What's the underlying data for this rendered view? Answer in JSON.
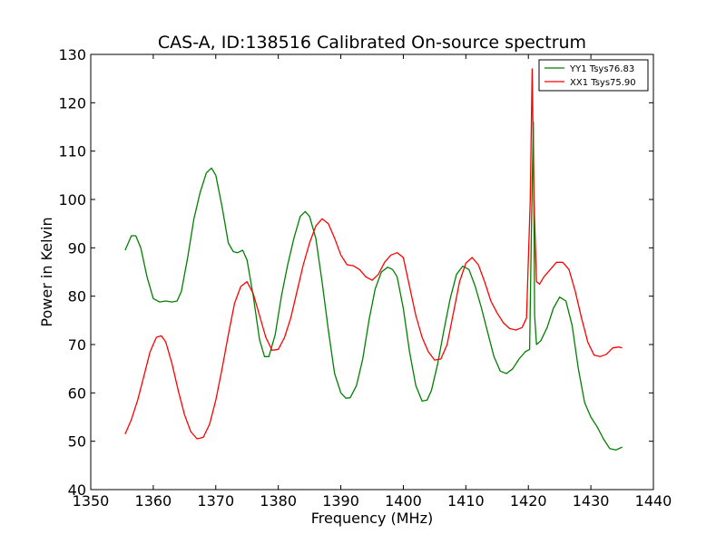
{
  "chart_data": {
    "type": "line",
    "title": "CAS-A, ID:138516 Calibrated On-source spectrum",
    "xlabel": "Frequency (MHz)",
    "ylabel": "Power in Kelvin",
    "xlim": [
      1350,
      1440
    ],
    "ylim": [
      40,
      130
    ],
    "xticks": [
      "1350",
      "1360",
      "1370",
      "1380",
      "1390",
      "1400",
      "1410",
      "1420",
      "1430",
      "1440"
    ],
    "yticks": [
      "40",
      "50",
      "60",
      "70",
      "80",
      "90",
      "100",
      "110",
      "120",
      "130"
    ],
    "grid": false,
    "legend_position": "top-right",
    "series": [
      {
        "name": "YY1 Tsys76.83",
        "color": "#008000",
        "points": [
          [
            1355.5,
            89.5
          ],
          [
            1356.5,
            92.5
          ],
          [
            1357.2,
            92.5
          ],
          [
            1358.0,
            90.0
          ],
          [
            1359.0,
            84.0
          ],
          [
            1360.0,
            79.5
          ],
          [
            1361.0,
            78.8
          ],
          [
            1362.0,
            79.0
          ],
          [
            1363.0,
            78.8
          ],
          [
            1363.8,
            79.0
          ],
          [
            1364.5,
            81.0
          ],
          [
            1365.5,
            88.0
          ],
          [
            1366.5,
            96.0
          ],
          [
            1367.5,
            101.5
          ],
          [
            1368.5,
            105.5
          ],
          [
            1369.3,
            106.5
          ],
          [
            1370.0,
            105.0
          ],
          [
            1371.0,
            98.5
          ],
          [
            1372.0,
            91.0
          ],
          [
            1372.8,
            89.2
          ],
          [
            1373.5,
            89.0
          ],
          [
            1374.3,
            89.5
          ],
          [
            1375.0,
            87.5
          ],
          [
            1376.0,
            80.0
          ],
          [
            1377.0,
            71.0
          ],
          [
            1377.8,
            67.5
          ],
          [
            1378.5,
            67.5
          ],
          [
            1379.5,
            72.0
          ],
          [
            1380.5,
            80.0
          ],
          [
            1381.5,
            86.5
          ],
          [
            1382.5,
            92.0
          ],
          [
            1383.5,
            96.5
          ],
          [
            1384.3,
            97.5
          ],
          [
            1385.0,
            96.5
          ],
          [
            1386.0,
            92.0
          ],
          [
            1387.0,
            83.0
          ],
          [
            1388.0,
            73.0
          ],
          [
            1389.0,
            64.0
          ],
          [
            1390.0,
            60.0
          ],
          [
            1390.8,
            58.9
          ],
          [
            1391.5,
            59.0
          ],
          [
            1392.5,
            61.5
          ],
          [
            1393.5,
            67.0
          ],
          [
            1394.5,
            75.0
          ],
          [
            1395.5,
            81.5
          ],
          [
            1396.5,
            85.0
          ],
          [
            1397.5,
            86.0
          ],
          [
            1398.3,
            85.5
          ],
          [
            1399.0,
            84.0
          ],
          [
            1400.0,
            77.5
          ],
          [
            1401.0,
            68.5
          ],
          [
            1402.0,
            61.5
          ],
          [
            1403.0,
            58.3
          ],
          [
            1403.8,
            58.5
          ],
          [
            1404.5,
            60.5
          ],
          [
            1405.5,
            66.0
          ],
          [
            1406.5,
            73.0
          ],
          [
            1407.5,
            79.5
          ],
          [
            1408.5,
            84.5
          ],
          [
            1409.5,
            86.2
          ],
          [
            1410.5,
            85.5
          ],
          [
            1411.5,
            82.0
          ],
          [
            1412.5,
            77.5
          ],
          [
            1413.5,
            72.5
          ],
          [
            1414.5,
            67.5
          ],
          [
            1415.5,
            64.5
          ],
          [
            1416.5,
            64.0
          ],
          [
            1417.5,
            65.0
          ],
          [
            1418.5,
            67.0
          ],
          [
            1419.5,
            68.5
          ],
          [
            1420.2,
            69.0
          ],
          [
            1420.5,
            95.0
          ],
          [
            1420.8,
            116.0
          ],
          [
            1421.0,
            76.0
          ],
          [
            1421.3,
            70.0
          ],
          [
            1422.0,
            70.8
          ],
          [
            1423.0,
            73.5
          ],
          [
            1424.0,
            77.5
          ],
          [
            1425.0,
            79.8
          ],
          [
            1426.0,
            79.0
          ],
          [
            1427.0,
            74.0
          ],
          [
            1428.0,
            65.0
          ],
          [
            1429.0,
            58.0
          ],
          [
            1430.0,
            55.0
          ],
          [
            1431.0,
            53.0
          ],
          [
            1432.0,
            50.5
          ],
          [
            1433.0,
            48.5
          ],
          [
            1434.0,
            48.2
          ],
          [
            1435.0,
            48.8
          ]
        ]
      },
      {
        "name": "XX1 Tsys75.90",
        "color": "#ff0000",
        "points": [
          [
            1355.5,
            51.5
          ],
          [
            1356.5,
            54.5
          ],
          [
            1357.5,
            58.5
          ],
          [
            1358.5,
            63.5
          ],
          [
            1359.5,
            68.5
          ],
          [
            1360.5,
            71.5
          ],
          [
            1361.3,
            71.8
          ],
          [
            1362.0,
            70.5
          ],
          [
            1363.0,
            66.0
          ],
          [
            1364.0,
            60.5
          ],
          [
            1365.0,
            55.5
          ],
          [
            1366.0,
            52.0
          ],
          [
            1367.0,
            50.5
          ],
          [
            1368.0,
            50.8
          ],
          [
            1369.0,
            53.5
          ],
          [
            1370.0,
            58.5
          ],
          [
            1371.0,
            65.0
          ],
          [
            1372.0,
            72.0
          ],
          [
            1373.0,
            78.5
          ],
          [
            1374.0,
            82.0
          ],
          [
            1375.0,
            83.0
          ],
          [
            1376.0,
            80.5
          ],
          [
            1377.0,
            76.0
          ],
          [
            1378.0,
            71.5
          ],
          [
            1379.0,
            68.8
          ],
          [
            1380.0,
            69.0
          ],
          [
            1381.0,
            71.5
          ],
          [
            1382.0,
            75.5
          ],
          [
            1383.0,
            81.0
          ],
          [
            1384.0,
            86.5
          ],
          [
            1385.0,
            91.0
          ],
          [
            1386.0,
            94.5
          ],
          [
            1387.0,
            96.0
          ],
          [
            1388.0,
            95.0
          ],
          [
            1389.0,
            92.0
          ],
          [
            1390.0,
            88.5
          ],
          [
            1391.0,
            86.5
          ],
          [
            1392.0,
            86.3
          ],
          [
            1393.0,
            85.5
          ],
          [
            1394.0,
            84.0
          ],
          [
            1395.0,
            83.3
          ],
          [
            1396.0,
            84.5
          ],
          [
            1397.0,
            87.0
          ],
          [
            1398.0,
            88.5
          ],
          [
            1399.0,
            89.0
          ],
          [
            1400.0,
            88.0
          ],
          [
            1401.0,
            82.0
          ],
          [
            1402.0,
            76.0
          ],
          [
            1403.0,
            71.5
          ],
          [
            1404.0,
            68.5
          ],
          [
            1405.0,
            66.8
          ],
          [
            1406.0,
            67.0
          ],
          [
            1407.0,
            70.0
          ],
          [
            1408.0,
            76.5
          ],
          [
            1409.0,
            83.0
          ],
          [
            1410.0,
            86.8
          ],
          [
            1411.0,
            88.0
          ],
          [
            1412.0,
            86.5
          ],
          [
            1413.0,
            83.0
          ],
          [
            1414.0,
            79.0
          ],
          [
            1415.0,
            76.5
          ],
          [
            1416.0,
            74.5
          ],
          [
            1417.0,
            73.3
          ],
          [
            1418.0,
            73.0
          ],
          [
            1419.0,
            73.5
          ],
          [
            1419.7,
            75.5
          ],
          [
            1420.3,
            100.0
          ],
          [
            1420.6,
            127.0
          ],
          [
            1420.9,
            100.0
          ],
          [
            1421.3,
            83.0
          ],
          [
            1421.8,
            82.5
          ],
          [
            1422.5,
            84.0
          ],
          [
            1423.5,
            85.5
          ],
          [
            1424.5,
            87.0
          ],
          [
            1425.5,
            87.0
          ],
          [
            1426.5,
            85.5
          ],
          [
            1427.5,
            81.0
          ],
          [
            1428.5,
            75.5
          ],
          [
            1429.5,
            70.5
          ],
          [
            1430.5,
            67.8
          ],
          [
            1431.5,
            67.5
          ],
          [
            1432.5,
            68.0
          ],
          [
            1433.5,
            69.3
          ],
          [
            1434.5,
            69.5
          ],
          [
            1435.0,
            69.3
          ]
        ]
      }
    ]
  }
}
